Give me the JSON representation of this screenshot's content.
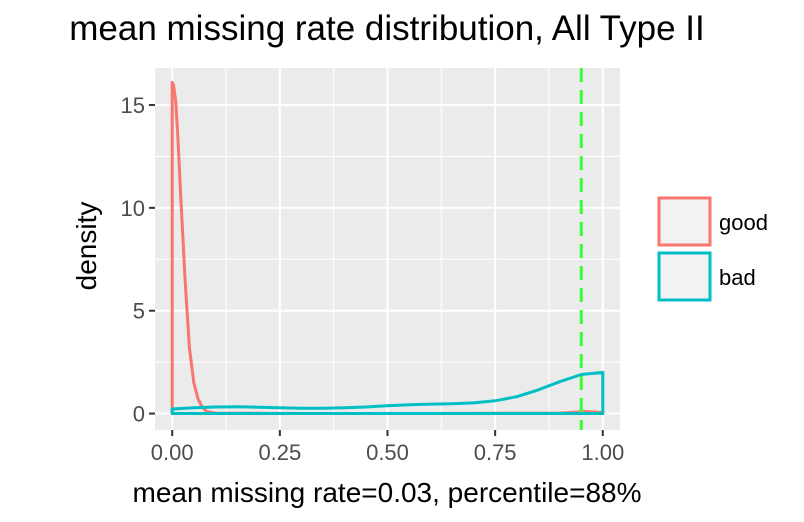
{
  "chart_data": {
    "type": "area",
    "title": "mean missing rate distribution, All Type II",
    "xlabel": "mean missing rate=0.03, percentile=88%",
    "ylabel": "density",
    "xlim": [
      -0.04,
      1.04
    ],
    "ylim": [
      -0.8,
      16.8
    ],
    "x_ticks": [
      0,
      0.25,
      0.5,
      0.75,
      1
    ],
    "x_tick_labels": [
      "0.00",
      "0.25",
      "0.50",
      "0.75",
      "1.00"
    ],
    "y_ticks": [
      0,
      5,
      10,
      15
    ],
    "y_tick_labels": [
      "0",
      "5",
      "10",
      "15"
    ],
    "grid": true,
    "legend_position": "right",
    "vline": {
      "x": 0.95,
      "color": "#33ff33",
      "style": "dashed"
    },
    "series": [
      {
        "name": "good",
        "color": "#f8766d",
        "x": [
          0,
          0.003,
          0.008,
          0.013,
          0.02,
          0.03,
          0.04,
          0.05,
          0.06,
          0.07,
          0.08,
          0.1,
          0.3,
          0.6,
          0.9,
          0.96,
          1.0
        ],
        "y": [
          16.1,
          16.0,
          15.2,
          13.5,
          10.5,
          6.5,
          3.2,
          1.5,
          0.7,
          0.3,
          0.1,
          0.02,
          0,
          0,
          0.02,
          0.1,
          0.05
        ]
      },
      {
        "name": "bad",
        "color": "#00bfc4",
        "x": [
          0,
          0.05,
          0.1,
          0.15,
          0.2,
          0.25,
          0.3,
          0.35,
          0.4,
          0.45,
          0.5,
          0.55,
          0.6,
          0.65,
          0.7,
          0.75,
          0.8,
          0.85,
          0.9,
          0.95,
          1.0
        ],
        "y": [
          0.22,
          0.28,
          0.32,
          0.33,
          0.31,
          0.28,
          0.26,
          0.26,
          0.28,
          0.32,
          0.38,
          0.43,
          0.46,
          0.48,
          0.52,
          0.62,
          0.82,
          1.15,
          1.55,
          1.9,
          2.0
        ]
      }
    ]
  }
}
